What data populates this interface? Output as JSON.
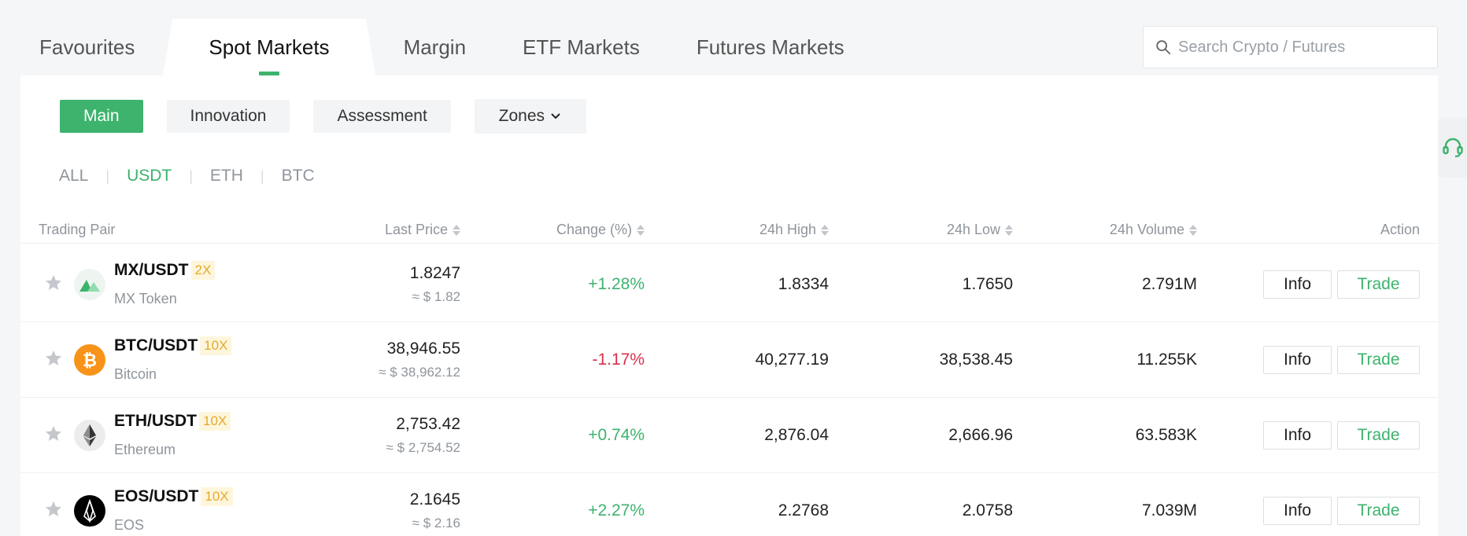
{
  "tabs": [
    {
      "label": "Favourites"
    },
    {
      "label": "Spot Markets"
    },
    {
      "label": "Margin"
    },
    {
      "label": "ETF Markets"
    },
    {
      "label": "Futures Markets"
    }
  ],
  "active_tab": "Spot Markets",
  "search": {
    "placeholder": "Search Crypto / Futures",
    "icon": "search-icon"
  },
  "chips": [
    {
      "label": "Main"
    },
    {
      "label": "Innovation"
    },
    {
      "label": "Assessment"
    },
    {
      "label": "Zones"
    }
  ],
  "quote_filters": [
    {
      "label": "ALL"
    },
    {
      "label": "USDT"
    },
    {
      "label": "ETH"
    },
    {
      "label": "BTC"
    }
  ],
  "table": {
    "headers": {
      "pair": "Trading Pair",
      "last_price": "Last Price",
      "change": "Change (%)",
      "high": "24h High",
      "low": "24h Low",
      "volume": "24h Volume",
      "action": "Action"
    },
    "rows": [
      {
        "pair": "MX/USDT",
        "leverage": "2X",
        "name": "MX Token",
        "price": "1.8247",
        "usd": "≈ $ 1.82",
        "change": "+1.28%",
        "high": "1.8334",
        "low": "1.7650",
        "volume": "2.791M",
        "info": "Info",
        "trade": "Trade"
      },
      {
        "pair": "BTC/USDT",
        "leverage": "10X",
        "name": "Bitcoin",
        "price": "38,946.55",
        "usd": "≈ $ 38,962.12",
        "change": "-1.17%",
        "high": "40,277.19",
        "low": "38,538.45",
        "volume": "11.255K",
        "info": "Info",
        "trade": "Trade"
      },
      {
        "pair": "ETH/USDT",
        "leverage": "10X",
        "name": "Ethereum",
        "price": "2,753.42",
        "usd": "≈ $ 2,754.52",
        "change": "+0.74%",
        "high": "2,876.04",
        "low": "2,666.96",
        "volume": "63.583K",
        "info": "Info",
        "trade": "Trade"
      },
      {
        "pair": "EOS/USDT",
        "leverage": "10X",
        "name": "EOS",
        "price": "2.1645",
        "usd": "≈ $ 2.16",
        "change": "+2.27%",
        "high": "2.2768",
        "low": "2.0758",
        "volume": "7.039M",
        "info": "Info",
        "trade": "Trade"
      }
    ]
  },
  "colors": {
    "accent": "#3db36d",
    "negative": "#d9304e",
    "leverage_bg": "#fdf6dc",
    "leverage_text": "#e7a92c"
  }
}
